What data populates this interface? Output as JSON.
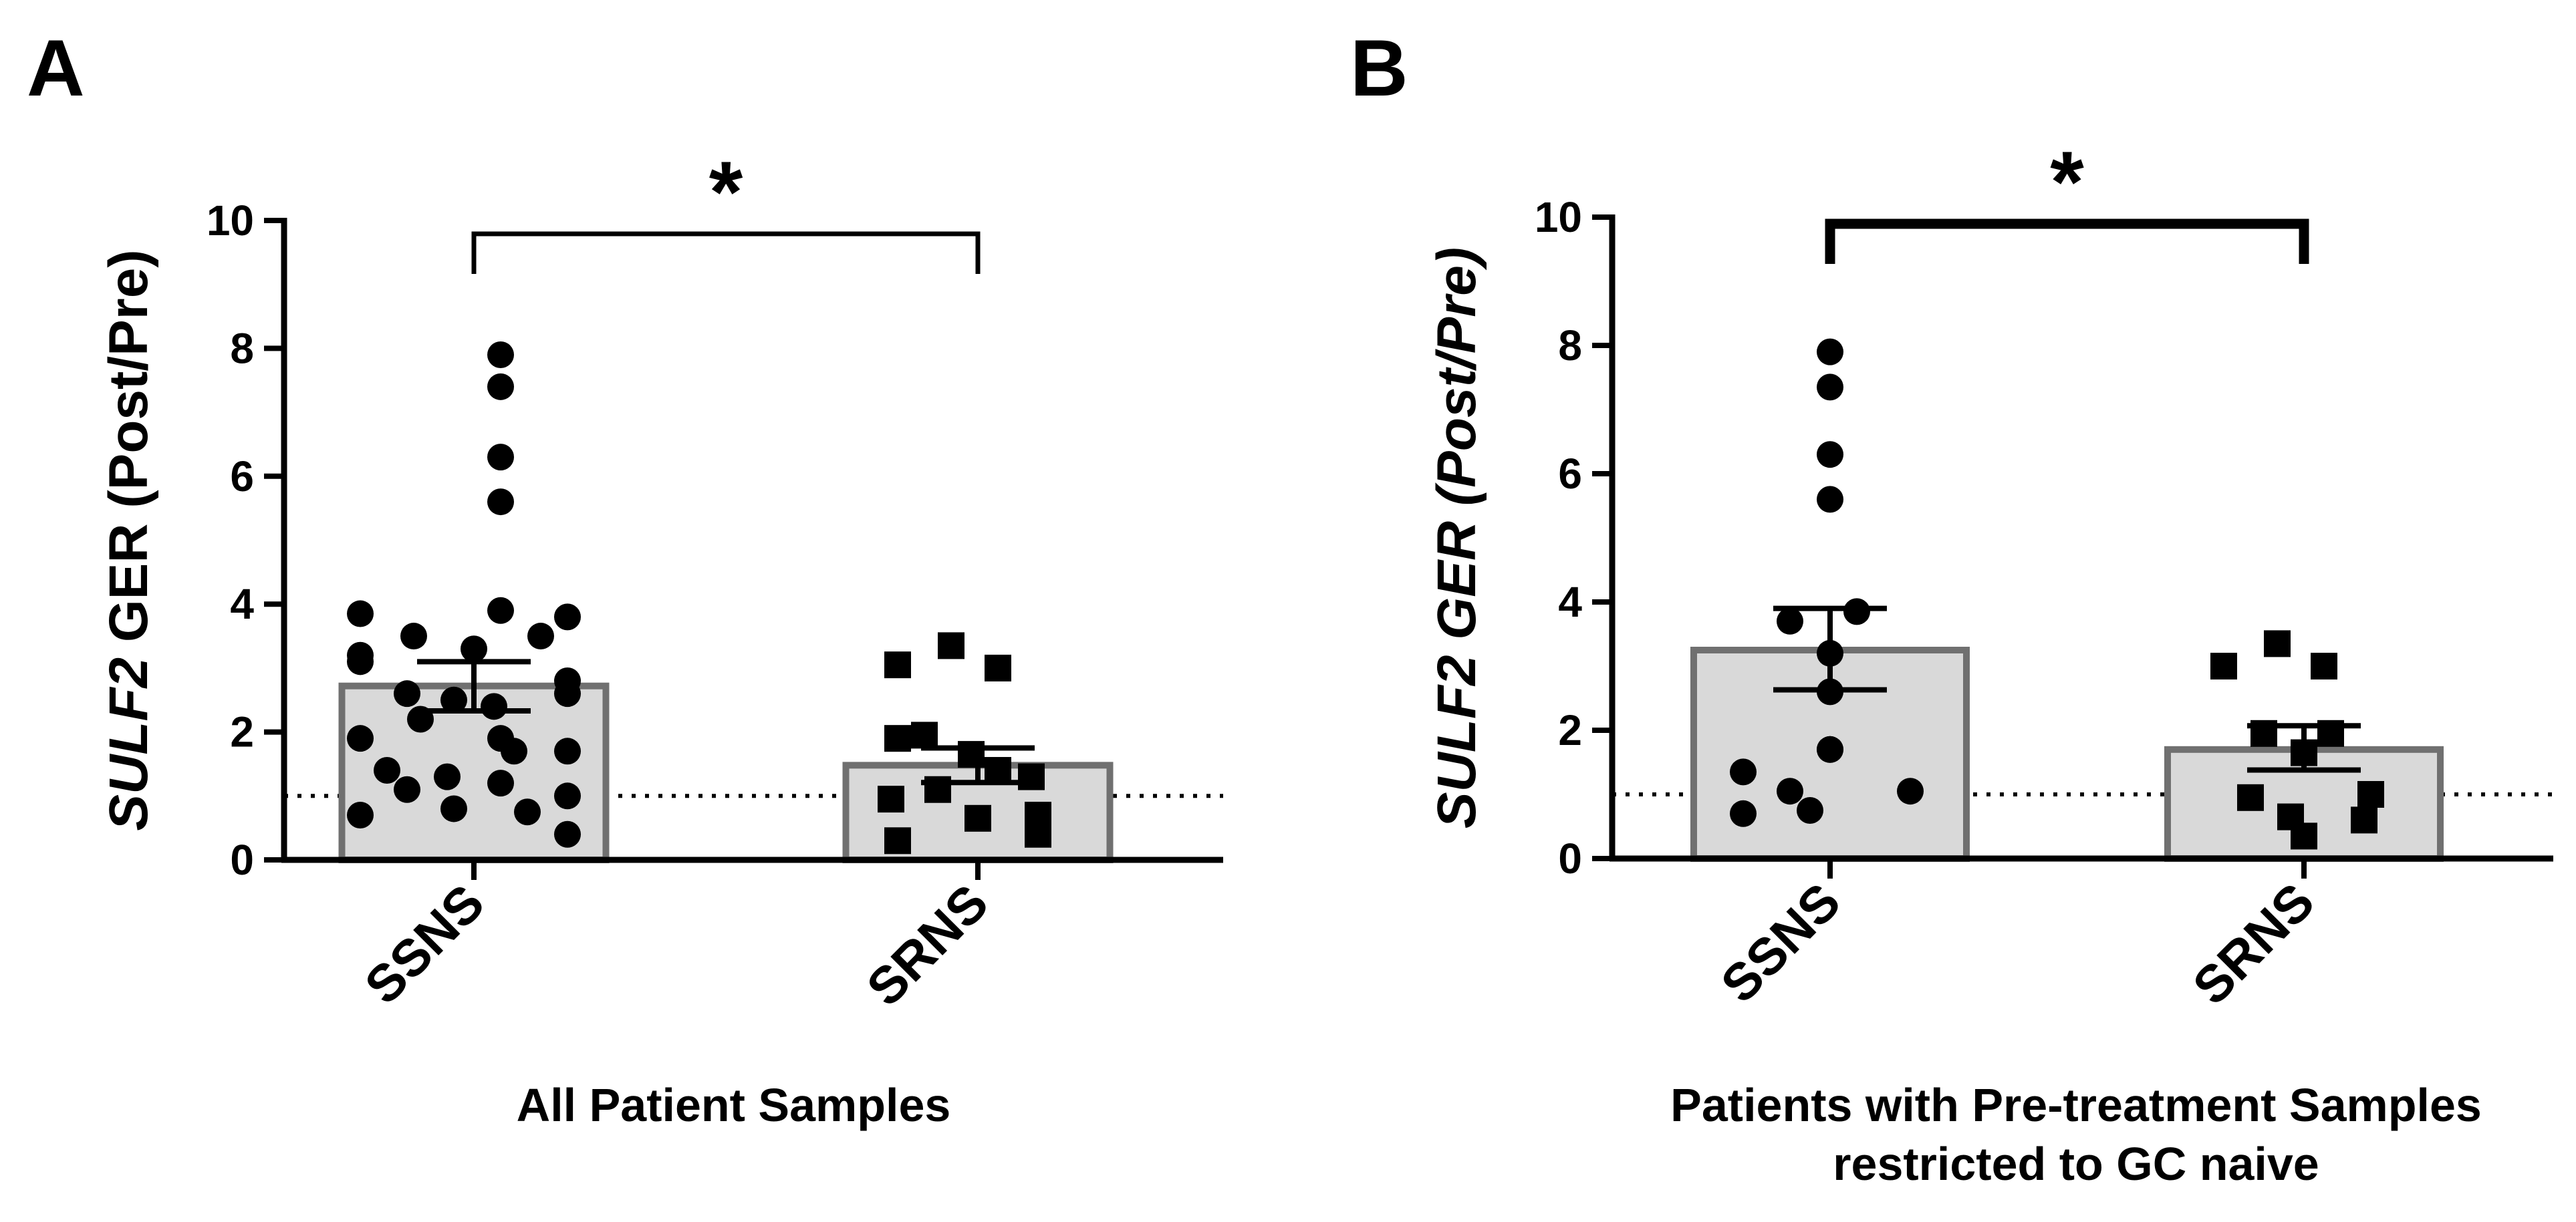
{
  "chart_data": [
    {
      "panel_label": "A",
      "type": "bar",
      "categories": [
        "SSNS",
        "SRNS"
      ],
      "bar_means": [
        2.72,
        1.48
      ],
      "sem_upper": [
        3.1,
        1.75
      ],
      "sem_lower": [
        2.33,
        1.21
      ],
      "ylabel_gene": "SULF2",
      "ylabel_rest": " GER (Post/Pre)",
      "ylabel_italic_rest": false,
      "ylim": [
        0,
        10
      ],
      "yticks": [
        "0",
        "2",
        "4",
        "6",
        "8",
        "10"
      ],
      "reference_line": 1,
      "significance": "*",
      "xlabel_lines": [
        "All Patient Samples"
      ],
      "points": [
        {
          "group": "SSNS",
          "marker": "circle",
          "values": [
            7.9,
            7.4,
            6.3,
            5.6,
            3.85,
            3.5,
            3.3,
            3.2,
            3.9,
            3.5,
            3.8,
            3.1,
            2.6,
            2.4,
            2.5,
            2.6,
            2.8,
            1.9,
            2.2,
            1.9,
            1.7,
            1.7,
            1.4,
            1.3,
            1.2,
            1.1,
            1.0,
            0.8,
            0.75,
            0.7,
            0.4
          ]
        },
        {
          "group": "SRNS",
          "marker": "square",
          "values": [
            3.35,
            3.0,
            3.05,
            1.95,
            1.9,
            1.65,
            1.4,
            1.3,
            1.1,
            0.95,
            0.7,
            0.65,
            0.4,
            0.3
          ]
        }
      ]
    },
    {
      "panel_label": "B",
      "type": "bar",
      "categories": [
        "SSNS",
        "SRNS"
      ],
      "bar_means": [
        3.25,
        1.7
      ],
      "sem_upper": [
        3.9,
        2.07
      ],
      "sem_lower": [
        2.63,
        1.38
      ],
      "ylabel_gene": "SULF2",
      "ylabel_rest": " GER (Post/Pre)",
      "ylabel_italic_rest": true,
      "ylim": [
        0,
        10
      ],
      "yticks": [
        "0",
        "2",
        "4",
        "6",
        "8",
        "10"
      ],
      "reference_line": 1,
      "significance": "*",
      "xlabel_lines": [
        "Patients with Pre-treatment Samples",
        "restricted to GC naive"
      ],
      "points": [
        {
          "group": "SSNS",
          "marker": "circle",
          "values": [
            7.9,
            7.35,
            6.3,
            5.6,
            3.85,
            3.7,
            3.2,
            2.6,
            1.7,
            1.35,
            1.7,
            1.05,
            1.05,
            0.7,
            0.75
          ]
        },
        {
          "group": "SRNS",
          "marker": "square",
          "values": [
            3.35,
            3.0,
            3.0,
            1.95,
            1.95,
            1.65,
            1.0,
            0.95,
            0.65,
            0.6,
            0.35
          ]
        }
      ]
    }
  ]
}
